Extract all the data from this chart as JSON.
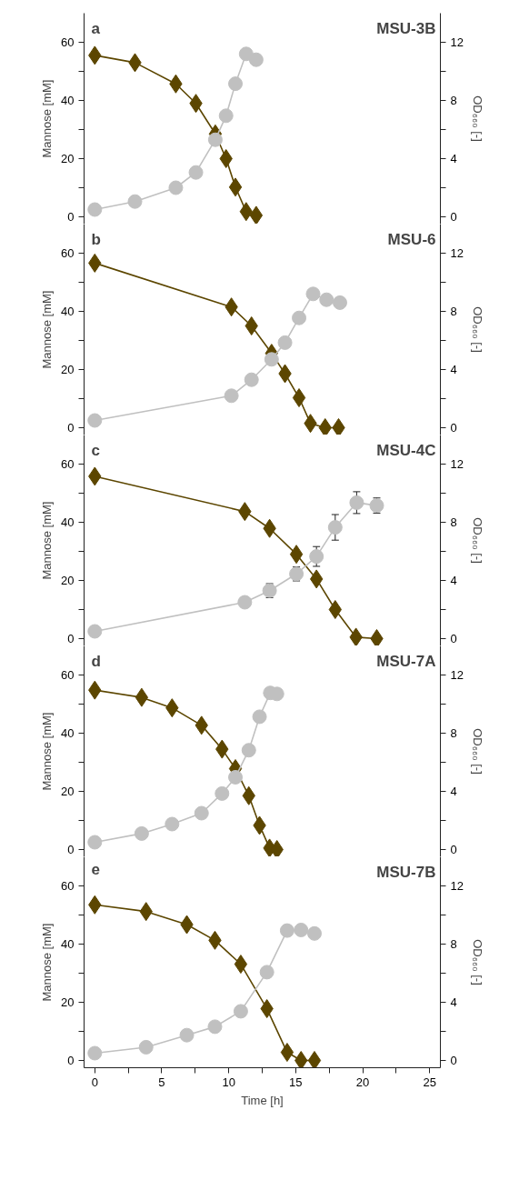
{
  "chart_data": [
    {
      "type": "line",
      "title": "MSU-3B",
      "annotations": [
        "a"
      ],
      "ylabel": "Mannose [mM]",
      "y2label": "OD₆₆₀ [-]",
      "xlim": [
        -0.8,
        25.8
      ],
      "ylim": [
        -2.5,
        70
      ],
      "y2lim": [
        -0.5,
        14
      ],
      "yticks": [
        0,
        {
          "value": 10,
          "label": null
        },
        20,
        {
          "value": 30,
          "label": null
        },
        40,
        {
          "value": 50,
          "label": null
        },
        60
      ],
      "y2ticks": [
        0,
        {
          "value": 2,
          "label": null
        },
        4,
        {
          "value": 6,
          "label": null
        },
        8,
        {
          "value": 10,
          "label": null
        },
        12
      ],
      "tick_labels": "y",
      "series": [
        {
          "color": "#5c4600",
          "marker": "diamond",
          "x": [
            0,
            3.0,
            6.05,
            7.55,
            9.0,
            9.8,
            10.5,
            11.3,
            12.05
          ],
          "values": [
            55.5,
            53,
            45.7,
            39,
            28.5,
            20,
            10.2,
            1.8,
            0.5
          ]
        },
        {
          "color": "#c0c0c0",
          "marker": "circle",
          "axis": "y2",
          "x": [
            0,
            3.0,
            6.05,
            7.55,
            9.0,
            9.8,
            10.5,
            11.3,
            12.05
          ],
          "values": [
            0.5,
            1.05,
            2.0,
            3.05,
            5.3,
            6.95,
            9.15,
            11.2,
            10.8
          ]
        }
      ]
    },
    {
      "type": "line",
      "title": "MSU-6",
      "annotations": [
        "b"
      ],
      "ylabel": "Mannose [mM]",
      "y2label": "OD₆₆₀ [-]",
      "xlim": [
        -0.8,
        25.8
      ],
      "ylim": [
        -2.5,
        70
      ],
      "y2lim": [
        -0.5,
        14
      ],
      "yticks": [
        0,
        {
          "value": 10,
          "label": null
        },
        20,
        {
          "value": 30,
          "label": null
        },
        40,
        {
          "value": 50,
          "label": null
        },
        60
      ],
      "y2ticks": [
        0,
        {
          "value": 2,
          "label": null
        },
        4,
        {
          "value": 6,
          "label": null
        },
        8,
        {
          "value": 10,
          "label": null
        },
        12
      ],
      "tick_labels": "y",
      "series": [
        {
          "color": "#5c4600",
          "marker": "diamond",
          "x": [
            0,
            10.2,
            11.7,
            13.2,
            14.2,
            15.25,
            16.1,
            17.2,
            18.2
          ],
          "values": [
            56.6,
            41.5,
            35,
            25.6,
            18.6,
            10.3,
            1.5,
            0,
            0
          ]
        },
        {
          "color": "#c0c0c0",
          "marker": "circle",
          "axis": "y2",
          "x": [
            0,
            10.2,
            11.7,
            13.2,
            14.2,
            15.25,
            16.3,
            17.3,
            18.3
          ],
          "values": [
            0.5,
            2.2,
            3.3,
            4.7,
            5.85,
            7.55,
            9.2,
            8.8,
            8.6
          ]
        }
      ]
    },
    {
      "type": "line",
      "title": "MSU-4C",
      "annotations": [
        "c"
      ],
      "ylabel": "Mannose [mM]",
      "y2label": "OD₆₆₀ [-]",
      "xlim": [
        -0.8,
        25.8
      ],
      "ylim": [
        -2.5,
        70
      ],
      "y2lim": [
        -0.5,
        14
      ],
      "yticks": [
        0,
        {
          "value": 10,
          "label": null
        },
        20,
        {
          "value": 30,
          "label": null
        },
        40,
        {
          "value": 50,
          "label": null
        },
        60
      ],
      "y2ticks": [
        0,
        {
          "value": 2,
          "label": null
        },
        4,
        {
          "value": 6,
          "label": null
        },
        8,
        {
          "value": 10,
          "label": null
        },
        12
      ],
      "tick_labels": "y",
      "series": [
        {
          "color": "#5c4600",
          "marker": "diamond",
          "x": [
            0,
            11.2,
            13.05,
            15.05,
            16.55,
            17.95,
            19.5,
            21.05
          ],
          "values": [
            55.8,
            43.7,
            37.9,
            29,
            20.5,
            10,
            0.5,
            0
          ]
        },
        {
          "color": "#c0c0c0",
          "marker": "circle",
          "axis": "y2",
          "x": [
            0,
            11.2,
            13.05,
            15.05,
            16.55,
            17.95,
            19.55,
            21.05
          ],
          "values": [
            0.5,
            2.5,
            3.3,
            4.45,
            5.65,
            7.65,
            9.35,
            9.15
          ],
          "errors": [
            null,
            null,
            0.48,
            0.48,
            0.68,
            0.88,
            0.75,
            0.52
          ]
        }
      ]
    },
    {
      "type": "line",
      "title": "MSU-7A",
      "annotations": [
        "d"
      ],
      "ylabel": "Mannose [mM]",
      "y2label": "OD₆₆₀ [-]",
      "xlim": [
        -0.8,
        25.8
      ],
      "ylim": [
        -2.5,
        70
      ],
      "y2lim": [
        -0.5,
        14
      ],
      "yticks": [
        0,
        {
          "value": 10,
          "label": null
        },
        20,
        {
          "value": 30,
          "label": null
        },
        40,
        {
          "value": 50,
          "label": null
        },
        60
      ],
      "y2ticks": [
        0,
        {
          "value": 2,
          "label": null
        },
        4,
        {
          "value": 6,
          "label": null
        },
        8,
        {
          "value": 10,
          "label": null
        },
        12
      ],
      "tick_labels": "y",
      "series": [
        {
          "color": "#5c4600",
          "marker": "diamond",
          "x": [
            0,
            3.5,
            5.77,
            7.97,
            9.5,
            10.5,
            11.5,
            12.3,
            13.05,
            13.6
          ],
          "values": [
            54.8,
            52.3,
            48.7,
            42.7,
            34.5,
            27.8,
            18.5,
            8.3,
            0.5,
            0
          ]
        },
        {
          "color": "#c0c0c0",
          "marker": "circle",
          "axis": "y2",
          "x": [
            0,
            3.5,
            5.77,
            7.97,
            9.5,
            10.5,
            11.5,
            12.3,
            13.1,
            13.6
          ],
          "values": [
            0.5,
            1.1,
            1.75,
            2.5,
            3.85,
            4.97,
            6.83,
            9.13,
            10.77,
            10.7
          ]
        }
      ]
    },
    {
      "type": "line",
      "title": "MSU-7B",
      "annotations": [
        "e"
      ],
      "xlabel": "Time [h]",
      "ylabel": "Mannose [mM]",
      "y2label": "OD₆₆₀ [-]",
      "xlim": [
        -0.8,
        25.8
      ],
      "xticks": [
        0,
        {
          "value": 2.5,
          "label": null
        },
        5,
        {
          "value": 7.5,
          "label": null
        },
        10,
        {
          "value": 12.5,
          "label": null
        },
        15,
        {
          "value": 17.5,
          "label": null
        },
        20,
        {
          "value": 22.5,
          "label": null
        },
        25
      ],
      "ylim": [
        -2.5,
        70
      ],
      "y2lim": [
        -0.5,
        14
      ],
      "yticks": [
        0,
        {
          "value": 10,
          "label": null
        },
        20,
        {
          "value": 30,
          "label": null
        },
        40,
        {
          "value": 50,
          "label": null
        },
        60
      ],
      "y2ticks": [
        0,
        {
          "value": 2,
          "label": null
        },
        4,
        {
          "value": 6,
          "label": null
        },
        8,
        {
          "value": 10,
          "label": null
        },
        12
      ],
      "series": [
        {
          "color": "#5c4600",
          "marker": "diamond",
          "x": [
            0,
            3.83,
            6.87,
            8.97,
            10.9,
            12.85,
            14.36,
            15.4,
            16.4
          ],
          "values": [
            53.5,
            51.2,
            46.7,
            41.3,
            33.1,
            17.8,
            2.8,
            0,
            0
          ]
        },
        {
          "color": "#c0c0c0",
          "marker": "circle",
          "axis": "y2",
          "x": [
            0,
            3.83,
            6.87,
            8.97,
            10.9,
            12.85,
            14.36,
            15.4,
            16.4
          ],
          "values": [
            0.5,
            0.91,
            1.74,
            2.32,
            3.38,
            6.07,
            8.93,
            8.97,
            8.73
          ]
        }
      ]
    }
  ]
}
